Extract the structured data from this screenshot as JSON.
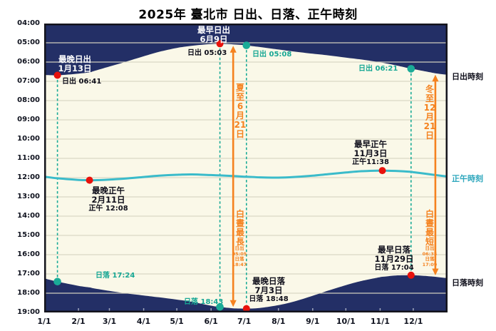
{
  "title": "2025年 臺北市 日出、日落、正午時刻",
  "colors": {
    "navy": "#232F66",
    "cream": "#FAF8E8",
    "cyan": "#3ABBCA",
    "teal": "#1AAB97",
    "red": "#E8120C",
    "orange": "#F5821F",
    "grid": "#D9D6C3",
    "tick": "#9FA6BD",
    "border": "#14141C",
    "text_dark": "#0E0E1A",
    "cyan_label": "#2EA7BD"
  },
  "y_axis": {
    "labels": [
      "04:00",
      "05:00",
      "06:00",
      "07:00",
      "08:00",
      "09:00",
      "10:00",
      "11:00",
      "12:00",
      "13:00",
      "14:00",
      "15:00",
      "16:00",
      "17:00",
      "18:00",
      "19:00"
    ]
  },
  "x_axis": {
    "ticks": [
      {
        "label": "1/1",
        "day": 0
      },
      {
        "label": "2/1",
        "day": 31
      },
      {
        "label": "3/1",
        "day": 59
      },
      {
        "label": "4/1",
        "day": 90
      },
      {
        "label": "5/1",
        "day": 120
      },
      {
        "label": "6/1",
        "day": 151
      },
      {
        "label": "7/1",
        "day": 181
      },
      {
        "label": "8/1",
        "day": 212
      },
      {
        "label": "9/1",
        "day": 243
      },
      {
        "label": "10/1",
        "day": 273
      },
      {
        "label": "11/1",
        "day": 304
      },
      {
        "label": "12/1",
        "day": 334
      }
    ]
  },
  "side_labels": {
    "sunrise": "日出時刻",
    "noon": "正午時刻",
    "sunset": "日落時刻"
  },
  "annotations": {
    "latest_sunrise": {
      "line1": "最晚日出",
      "line2": "1月13日",
      "time": "日出 06:41"
    },
    "earliest_sunrise": {
      "line1": "最早日出",
      "line2": "6月9日",
      "time": "日出 05:03"
    },
    "sunrise_jul3": {
      "time": "日出 05:08"
    },
    "sunrise_nov29": {
      "time": "日出 06:21"
    },
    "latest_noon": {
      "line1": "最晚正午",
      "line2": "2月11日",
      "time": "正午 12:08"
    },
    "earliest_noon": {
      "line1": "最早正午",
      "line2": "11月3日",
      "time": "正午11:38"
    },
    "latest_sunset": {
      "line1": "最晚日落",
      "line2": "7月3日",
      "time": "日落 18:48"
    },
    "earliest_sunset": {
      "line1": "最早日落",
      "line2": "11月29日",
      "time": "日落 17:04"
    },
    "sunset_jan13": {
      "time": "日落 17:24"
    },
    "sunset_jun9": {
      "time": "日落 18:43"
    },
    "summer": {
      "solstice": "夏至6月21日",
      "daylight": "白晝最長",
      "sr_label": "日出",
      "sr": "05:05",
      "ss_label": "日落",
      "ss": "18:47"
    },
    "winter": {
      "solstice": "冬至12月21日",
      "daylight": "白晝最短",
      "sr_label": "日出",
      "sr": "06:35",
      "ss_label": "日落",
      "ss": "17:09"
    }
  },
  "chart_data": {
    "type": "area",
    "title": "2025年 臺北市 日出、日落、正午時刻",
    "x_unit": "day_of_year_zero_based",
    "x_range_days": [
      0,
      365
    ],
    "ylim": [
      "04:00",
      "19:00"
    ],
    "grid": "horizontal-hourly",
    "x": [
      0,
      12,
      31,
      41,
      45,
      59,
      73,
      90,
      104,
      120,
      134,
      151,
      159,
      171,
      181,
      183,
      195,
      212,
      226,
      243,
      257,
      273,
      287,
      304,
      306,
      318,
      332,
      334,
      348,
      354,
      364
    ],
    "series": [
      {
        "name": "日出時刻",
        "values": [
          "06:40",
          "06:41",
          "06:36",
          "06:32",
          "06:28",
          "06:14",
          "06:00",
          "05:42",
          "05:28",
          "05:16",
          "05:09",
          "05:04",
          "05:03",
          "05:05",
          "05:07",
          "05:08",
          "05:13",
          "05:21",
          "05:27",
          "05:34",
          "05:39",
          "05:46",
          "05:52",
          "06:01",
          "06:02",
          "06:10",
          "06:21",
          "06:22",
          "06:31",
          "06:35",
          "06:39"
        ]
      },
      {
        "name": "正午時刻",
        "values": [
          "11:57",
          "12:02",
          "12:07",
          "12:08",
          "12:08",
          "12:06",
          "12:03",
          "11:58",
          "11:54",
          "11:51",
          "11:50",
          "11:52",
          "11:53",
          "11:55",
          "11:57",
          "11:57",
          "11:59",
          "12:00",
          "11:58",
          "11:54",
          "11:49",
          "11:44",
          "11:40",
          "11:38",
          "11:38",
          "11:39",
          "11:42",
          "11:43",
          "11:49",
          "11:52",
          "11:56"
        ]
      },
      {
        "name": "日落時刻",
        "values": [
          "17:14",
          "17:24",
          "17:37",
          "17:42",
          "17:45",
          "17:53",
          "18:00",
          "18:07",
          "18:13",
          "18:20",
          "18:27",
          "18:39",
          "18:43",
          "18:47",
          "18:48",
          "18:48",
          "18:46",
          "18:37",
          "18:26",
          "18:08",
          "17:52",
          "17:35",
          "17:22",
          "17:10",
          "17:09",
          "17:05",
          "17:04",
          "17:04",
          "17:07",
          "17:09",
          "17:13"
        ]
      }
    ],
    "key_points": [
      {
        "id": "latest_sunrise",
        "day": 12,
        "time": "06:41",
        "color": "red"
      },
      {
        "id": "sunset_jan13",
        "day": 12,
        "time": "17:24",
        "color": "teal"
      },
      {
        "id": "earliest_sunrise",
        "day": 159,
        "time": "05:03",
        "color": "red"
      },
      {
        "id": "sunset_jun9",
        "day": 159,
        "time": "18:43",
        "color": "teal"
      },
      {
        "id": "sunrise_jul3",
        "day": 183,
        "time": "05:08",
        "color": "teal"
      },
      {
        "id": "latest_sunset",
        "day": 183,
        "time": "18:48",
        "color": "red"
      },
      {
        "id": "latest_noon",
        "day": 41,
        "time": "12:08",
        "color": "red"
      },
      {
        "id": "earliest_noon",
        "day": 306,
        "time": "11:38",
        "color": "red"
      },
      {
        "id": "sunrise_nov29",
        "day": 332,
        "time": "06:21",
        "color": "teal"
      },
      {
        "id": "earliest_sunset",
        "day": 332,
        "time": "17:04",
        "color": "red"
      }
    ],
    "connectors": [
      [
        "latest_sunrise",
        "sunset_jan13"
      ],
      [
        "earliest_sunrise",
        "sunset_jun9"
      ],
      [
        "sunrise_jul3",
        "latest_sunset"
      ],
      [
        "sunrise_nov29",
        "earliest_sunset"
      ]
    ],
    "solstice_arrows": [
      {
        "name": "夏至",
        "day": 171,
        "from": "05:05",
        "to": "18:47"
      },
      {
        "name": "冬至",
        "day": 354,
        "from": "06:35",
        "to": "17:09"
      }
    ]
  }
}
